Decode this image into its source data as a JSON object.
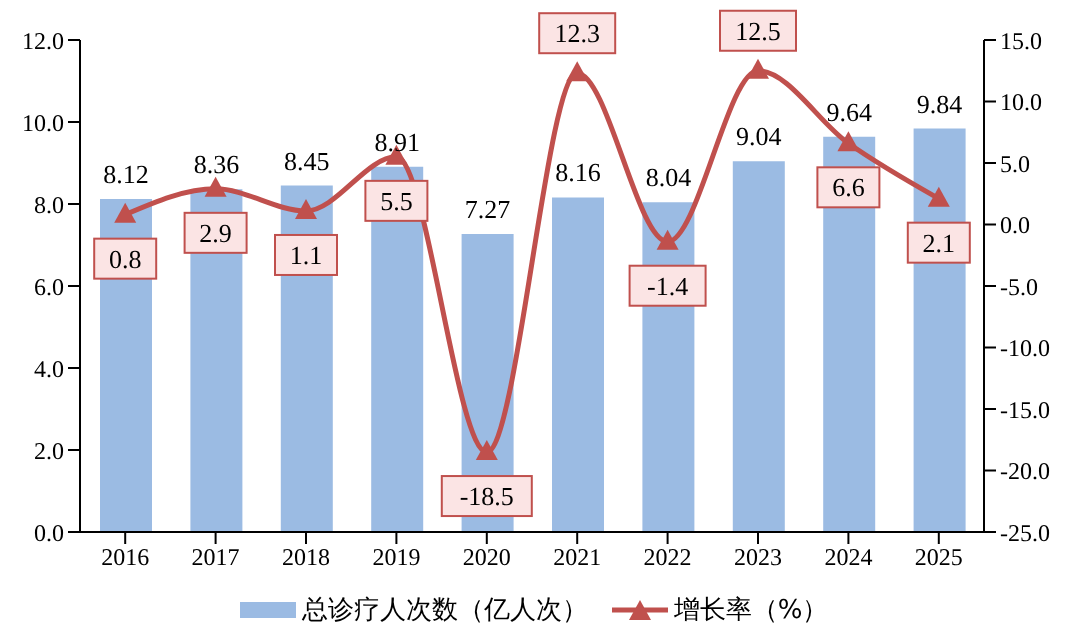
{
  "chart_data": {
    "type": "bar",
    "categories": [
      "2016",
      "2017",
      "2018",
      "2019",
      "2020",
      "2021",
      "2022",
      "2023",
      "2024",
      "2025"
    ],
    "series": [
      {
        "name": "总诊疗人次数（亿人次）",
        "color": "#9bbbe3",
        "values": [
          8.12,
          8.36,
          8.45,
          8.91,
          7.27,
          8.16,
          8.04,
          9.04,
          9.64,
          9.84
        ]
      },
      {
        "name": "增长率（%）",
        "type": "line",
        "axis": "y2",
        "color": "#c0504d",
        "marker": "triangle",
        "values": [
          0.8,
          2.9,
          1.1,
          5.5,
          -18.5,
          12.3,
          -1.4,
          12.5,
          6.6,
          2.1
        ]
      }
    ],
    "ylim": [
      0,
      12
    ],
    "yticks": [
      {
        "value": 0,
        "label": "0.0"
      },
      {
        "value": 2,
        "label": "2.0"
      },
      {
        "value": 4,
        "label": "4.0"
      },
      {
        "value": 6,
        "label": "6.0"
      },
      {
        "value": 8,
        "label": "8.0"
      },
      {
        "value": 10,
        "label": "10.0"
      },
      {
        "value": 12,
        "label": "12.0"
      }
    ],
    "y2lim": [
      -25,
      15
    ],
    "y2ticks": [
      {
        "value": -25,
        "label": "-25.0"
      },
      {
        "value": -20,
        "label": "-20.0"
      },
      {
        "value": -15,
        "label": "-15.0"
      },
      {
        "value": -10,
        "label": "-10.0"
      },
      {
        "value": -5,
        "label": "-5.0"
      },
      {
        "value": 0,
        "label": "0.0"
      },
      {
        "value": 5,
        "label": "5.0"
      },
      {
        "value": 10,
        "label": "10.0"
      },
      {
        "value": 15,
        "label": "15.0"
      }
    ],
    "data_labels": true,
    "legend": "bottom",
    "grid": false
  }
}
